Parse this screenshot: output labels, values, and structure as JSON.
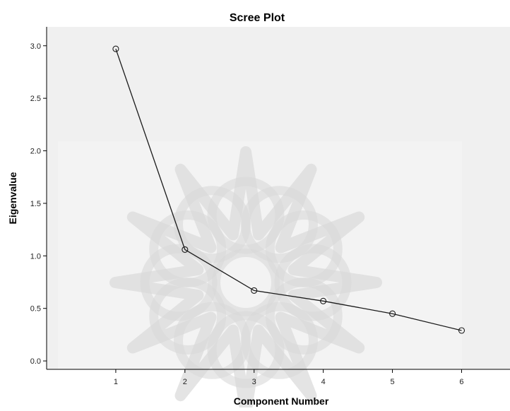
{
  "chart_data": {
    "type": "line",
    "title": "Scree Plot",
    "xlabel": "Component Number",
    "ylabel": "Eigenvalue",
    "x": [
      1,
      2,
      3,
      4,
      5,
      6
    ],
    "x_tick_labels": [
      "1",
      "2",
      "3",
      "4",
      "5",
      "6"
    ],
    "y_tick_labels": [
      "0.0",
      "0.5",
      "1.0",
      "1.5",
      "2.0",
      "2.5",
      "3.0"
    ],
    "series": [
      {
        "values": [
          2.97,
          1.06,
          0.67,
          0.57,
          0.45,
          0.29
        ]
      }
    ],
    "xlim": [
      0.0,
      6.7
    ],
    "ylim": [
      -0.08,
      3.18
    ],
    "grid": false,
    "markers": "open-circle",
    "colors": {
      "plot_background": "#f0f0f0",
      "line": "#1a1a1a",
      "axis": "#000000",
      "watermark": "#d8d8d8"
    }
  }
}
